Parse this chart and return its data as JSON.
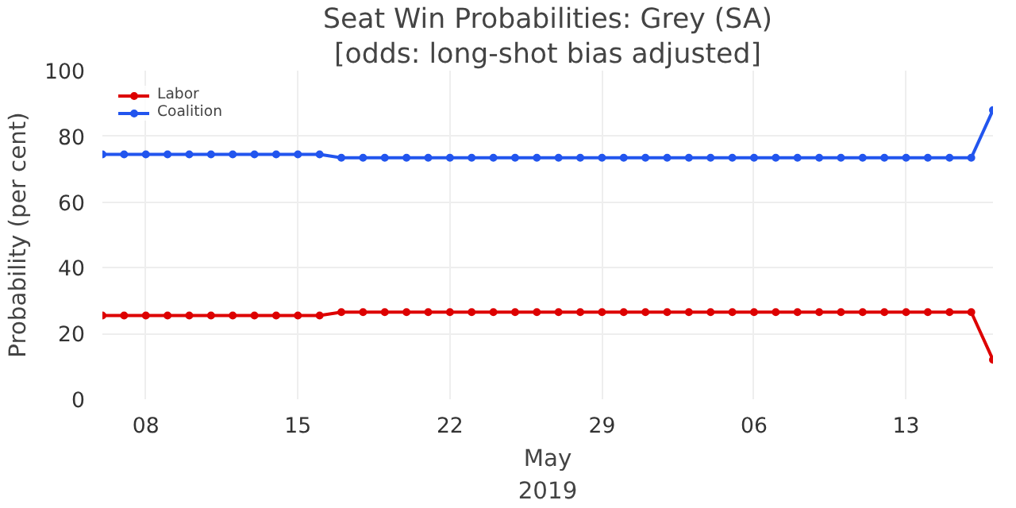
{
  "chart_data": {
    "type": "line",
    "title": "Seat Win Probabilities: Grey (SA)",
    "subtitle": "[odds: long-shot bias adjusted]",
    "ylabel": "Probability (per cent)",
    "xlabel": "May\n2019",
    "x": [
      "2019-04-06",
      "2019-04-07",
      "2019-04-08",
      "2019-04-09",
      "2019-04-10",
      "2019-04-11",
      "2019-04-12",
      "2019-04-13",
      "2019-04-14",
      "2019-04-15",
      "2019-04-16",
      "2019-04-17",
      "2019-04-18",
      "2019-04-19",
      "2019-04-20",
      "2019-04-21",
      "2019-04-22",
      "2019-04-23",
      "2019-04-24",
      "2019-04-25",
      "2019-04-26",
      "2019-04-27",
      "2019-04-28",
      "2019-04-29",
      "2019-04-30",
      "2019-05-01",
      "2019-05-02",
      "2019-05-03",
      "2019-05-04",
      "2019-05-05",
      "2019-05-06",
      "2019-05-07",
      "2019-05-08",
      "2019-05-09",
      "2019-05-10",
      "2019-05-11",
      "2019-05-12",
      "2019-05-13",
      "2019-05-14",
      "2019-05-15",
      "2019-05-16",
      "2019-05-17"
    ],
    "series": [
      {
        "name": "Labor",
        "color": "#dd0000",
        "values": [
          25.5,
          25.5,
          25.5,
          25.5,
          25.5,
          25.5,
          25.5,
          25.5,
          25.5,
          25.5,
          25.5,
          26.5,
          26.5,
          26.5,
          26.5,
          26.5,
          26.5,
          26.5,
          26.5,
          26.5,
          26.5,
          26.5,
          26.5,
          26.5,
          26.5,
          26.5,
          26.5,
          26.5,
          26.5,
          26.5,
          26.5,
          26.5,
          26.5,
          26.5,
          26.5,
          26.5,
          26.5,
          26.5,
          26.5,
          26.5,
          26.5,
          12
        ]
      },
      {
        "name": "Coalition",
        "color": "#2255ee",
        "values": [
          74.5,
          74.5,
          74.5,
          74.5,
          74.5,
          74.5,
          74.5,
          74.5,
          74.5,
          74.5,
          74.5,
          73.5,
          73.5,
          73.5,
          73.5,
          73.5,
          73.5,
          73.5,
          73.5,
          73.5,
          73.5,
          73.5,
          73.5,
          73.5,
          73.5,
          73.5,
          73.5,
          73.5,
          73.5,
          73.5,
          73.5,
          73.5,
          73.5,
          73.5,
          73.5,
          73.5,
          73.5,
          73.5,
          73.5,
          73.5,
          73.5,
          88
        ]
      }
    ],
    "xlim": [
      "2019-04-06",
      "2019-05-17"
    ],
    "xticks": [
      {
        "value": "2019-04-08",
        "label": "08"
      },
      {
        "value": "2019-04-15",
        "label": "15"
      },
      {
        "value": "2019-04-22",
        "label": "22"
      },
      {
        "value": "2019-04-29",
        "label": "29"
      },
      {
        "value": "2019-05-06",
        "label": "06"
      },
      {
        "value": "2019-05-13",
        "label": "13"
      }
    ],
    "ylim": [
      0,
      100
    ],
    "yticks": [
      0,
      20,
      40,
      60,
      80,
      100
    ],
    "grid": true,
    "legend": "top left",
    "marker": "circle",
    "line_style": "solid"
  }
}
